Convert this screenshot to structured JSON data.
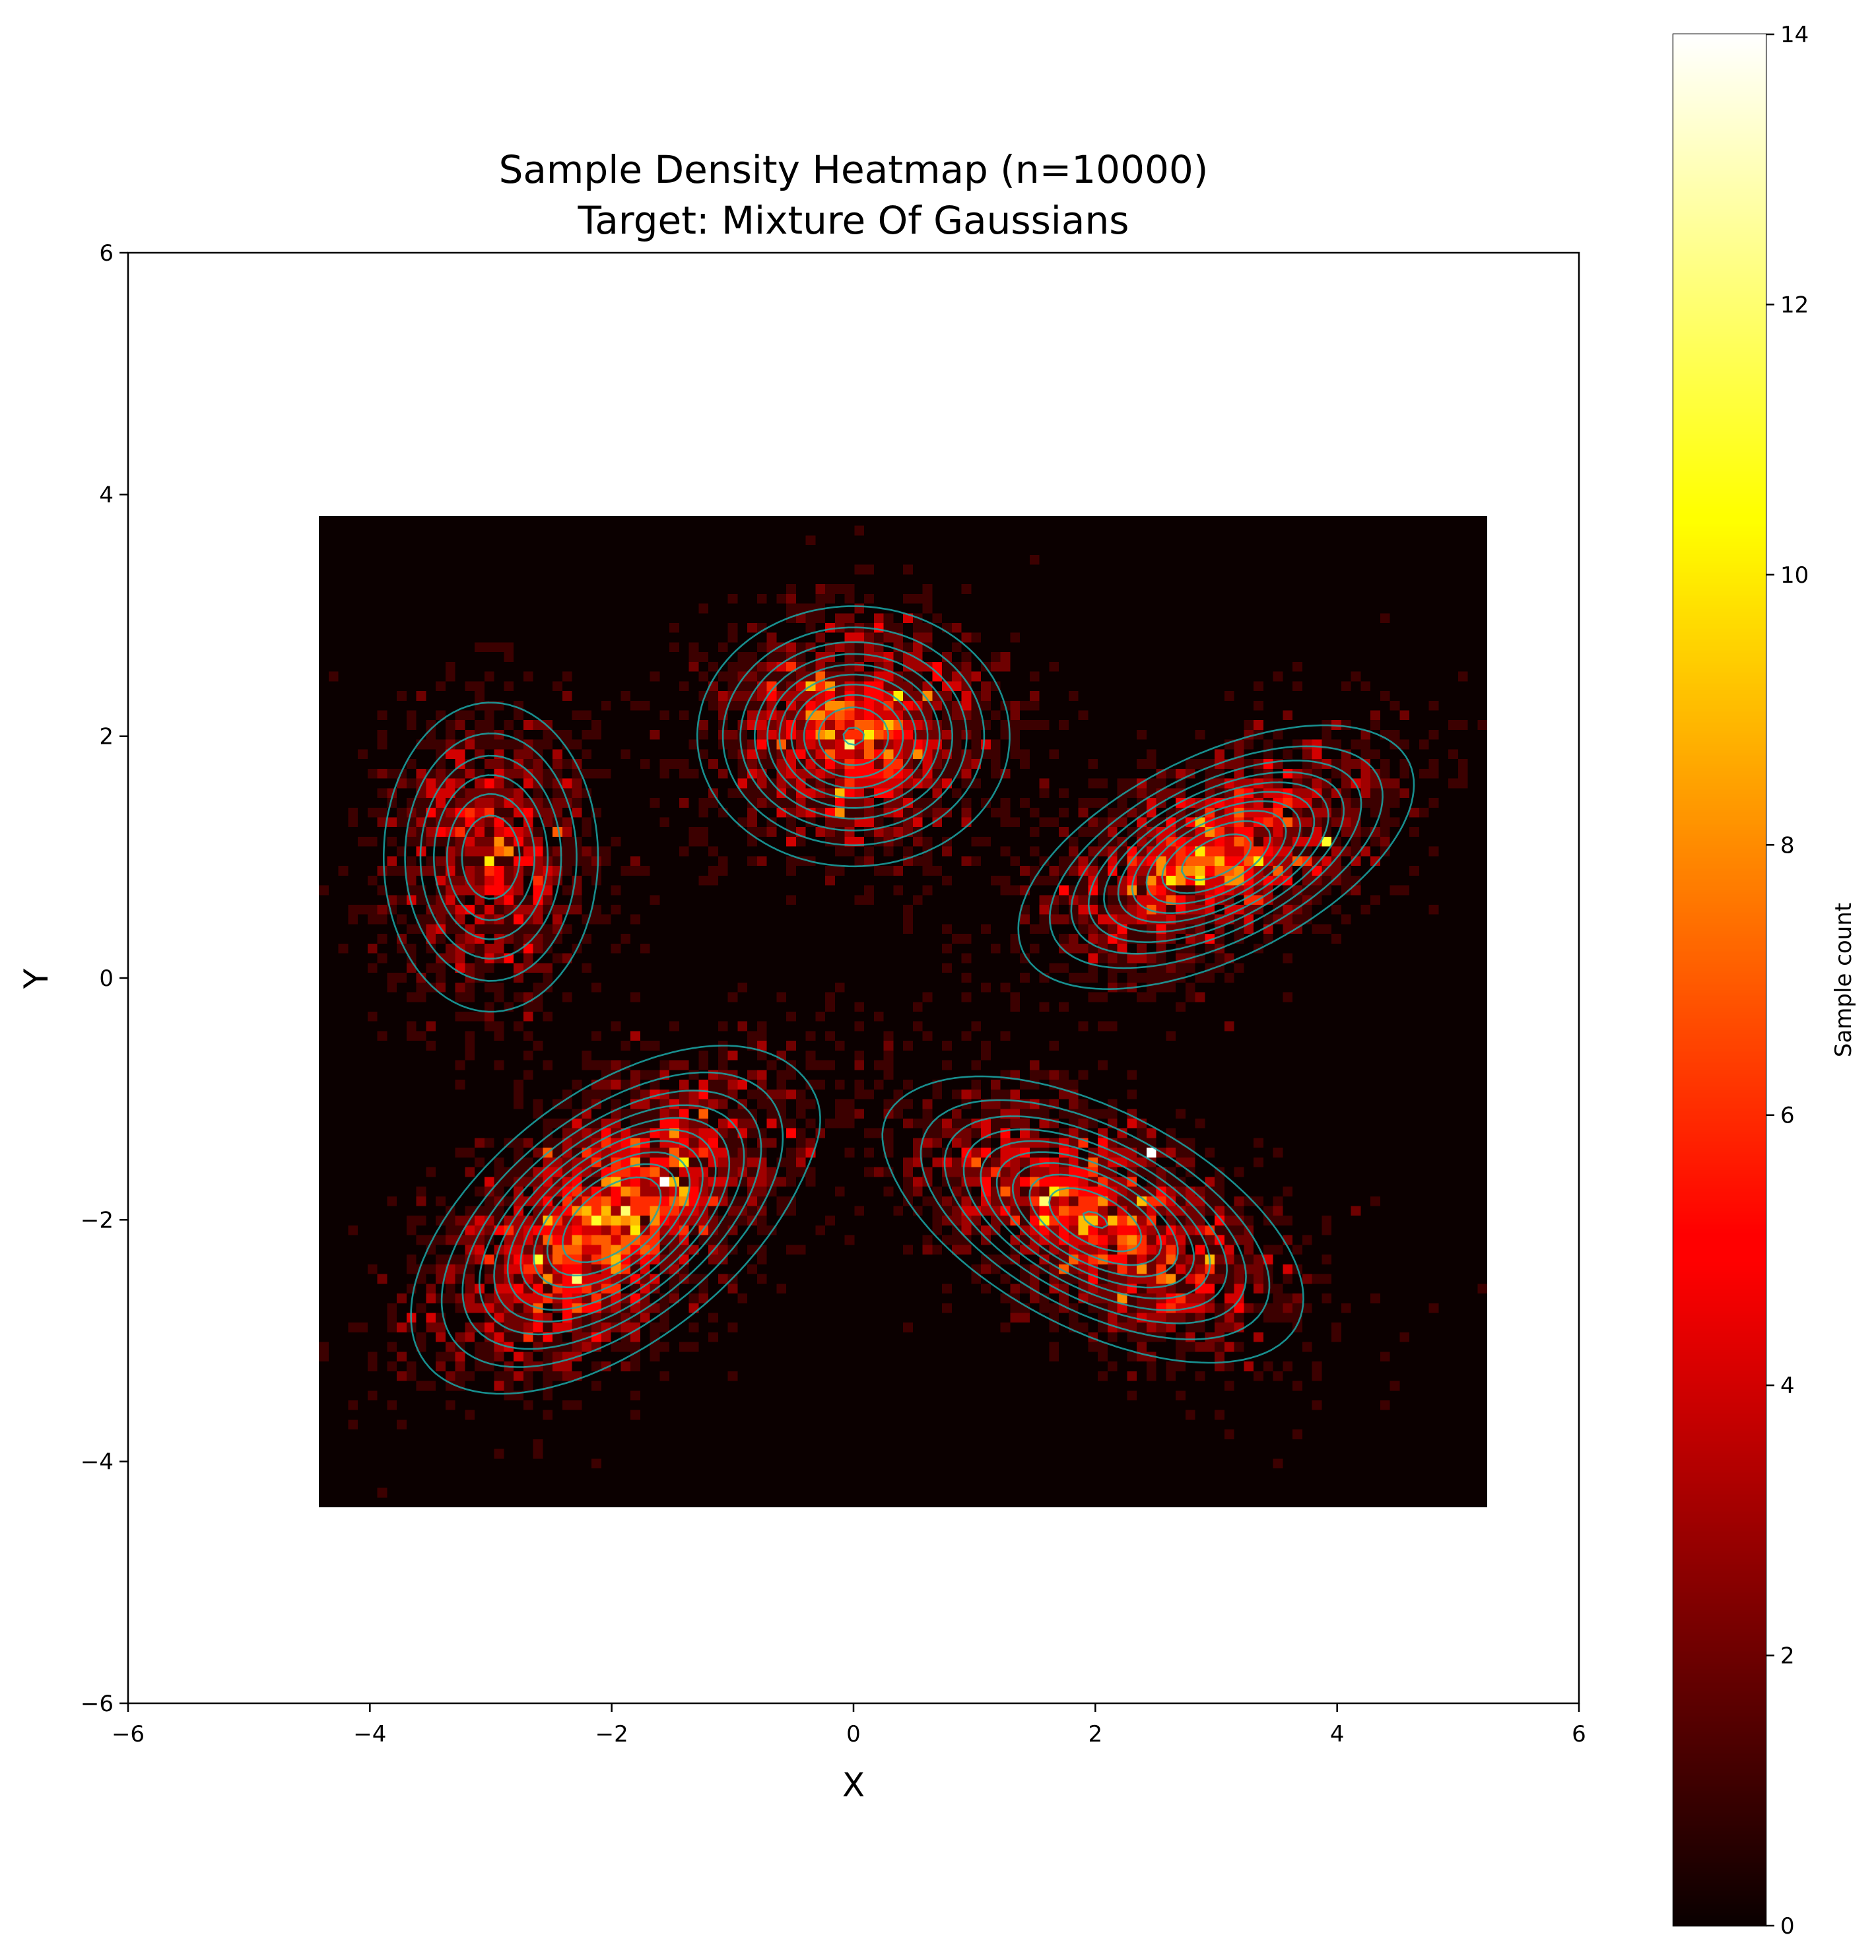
{
  "chart_data": {
    "type": "heatmap",
    "title": "Sample Density Heatmap (n=10000)\nTarget: Mixture Of Gaussians",
    "title_lines": [
      "Sample Density Heatmap (n=10000)",
      "Target: Mixture Of Gaussians"
    ],
    "xlabel": "X",
    "ylabel": "Y",
    "xlim": [
      -6,
      6
    ],
    "ylim": [
      -6,
      6
    ],
    "xticks": [
      -6,
      -4,
      -2,
      0,
      2,
      4,
      6
    ],
    "yticks": [
      -6,
      -4,
      -2,
      0,
      2,
      4,
      6
    ],
    "xtick_labels": [
      "−6",
      "−4",
      "−2",
      "0",
      "2",
      "4",
      "6"
    ],
    "ytick_labels": [
      "−6",
      "−4",
      "−2",
      "0",
      "2",
      "4",
      "6"
    ],
    "grid": false,
    "colormap": "hot",
    "n_samples": 10000,
    "histogram": {
      "x_range": [
        -4.42,
        5.24
      ],
      "y_range": [
        -4.38,
        3.82
      ],
      "bins_x": 120,
      "bins_y": 102
    },
    "mixture_components": [
      {
        "name": "",
        "mean": [
          -3.0,
          1.0
        ],
        "sx": 0.45,
        "sy": 0.65,
        "rho": 0.0,
        "weight": 0.12
      },
      {
        "name": "",
        "mean": [
          0.0,
          2.0
        ],
        "sx": 0.6,
        "sy": 0.5,
        "rho": 0.0,
        "weight": 0.18
      },
      {
        "name": "",
        "mean": [
          3.0,
          1.0
        ],
        "sx": 0.75,
        "sy": 0.5,
        "rho": 0.55,
        "weight": 0.2
      },
      {
        "name": "",
        "mean": [
          -2.0,
          -2.0
        ],
        "sx": 0.75,
        "sy": 0.65,
        "rho": 0.55,
        "weight": 0.28
      },
      {
        "name": "",
        "mean": [
          2.0,
          -2.0
        ],
        "sx": 0.8,
        "sy": 0.55,
        "rho": -0.55,
        "weight": 0.22
      }
    ],
    "peak_cells": [
      {
        "x": 2.45,
        "y": -1.48,
        "count": 14
      },
      {
        "x": -2.3,
        "y": -2.5,
        "count": 12
      },
      {
        "x": 3.9,
        "y": 1.1,
        "count": 11
      },
      {
        "x": 0.4,
        "y": 2.3,
        "count": 10
      }
    ],
    "contour_color": "#1ba8a8",
    "colorbar": {
      "label": "Sample count",
      "min": 0,
      "max": 14,
      "ticks": [
        0,
        2,
        4,
        6,
        8,
        10,
        12,
        14
      ],
      "tick_labels": [
        "0",
        "2",
        "4",
        "6",
        "8",
        "10",
        "12",
        "14"
      ]
    }
  }
}
